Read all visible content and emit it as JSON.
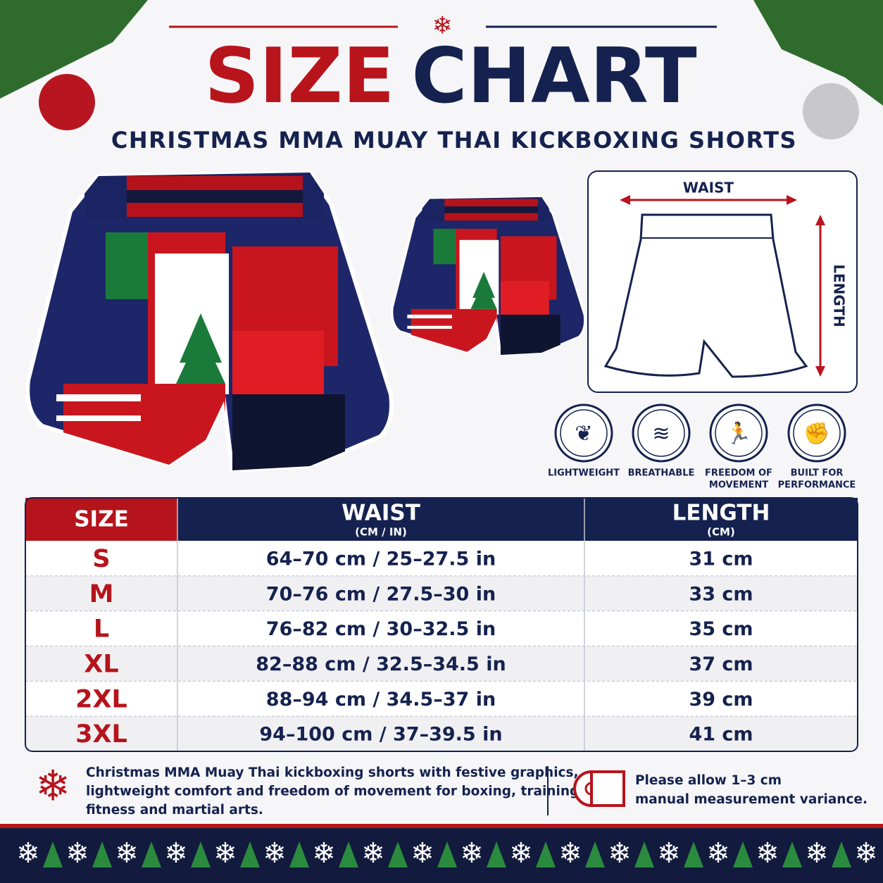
{
  "header": {
    "title_part1": "SIZE",
    "title_part2": "CHART",
    "subtitle": "CHRISTMAS MMA MUAY THAI KICKBOXING SHORTS"
  },
  "diagram": {
    "waist_label": "WAIST",
    "length_label": "LENGTH"
  },
  "features": [
    {
      "lines": [
        "LIGHTWEIGHT"
      ]
    },
    {
      "lines": [
        "BREATHABLE"
      ]
    },
    {
      "lines": [
        "FREEDOM OF",
        "MOVEMENT"
      ]
    },
    {
      "lines": [
        "BUILT FOR",
        "PERFORMANCE"
      ]
    }
  ],
  "table": {
    "columns": [
      {
        "title": "SIZE"
      },
      {
        "title": "WAIST",
        "unit": "(CM / IN)"
      },
      {
        "title": "LENGTH",
        "unit": "(CM)"
      }
    ],
    "rows": [
      [
        "S",
        "64–70 cm / 25–27.5 in",
        "31 cm"
      ],
      [
        "M",
        "70–76 cm / 27.5–30 in",
        "33 cm"
      ],
      [
        "L",
        "76–82 cm / 30–32.5 in",
        "35 cm"
      ],
      [
        "XL",
        "82–88 cm / 32.5–34.5 in",
        "37 cm"
      ],
      [
        "2XL",
        "88–94 cm / 34.5–37 in",
        "39 cm"
      ],
      [
        "3XL",
        "94–100 cm / 37–39.5 in",
        "41 cm"
      ]
    ]
  },
  "footer": {
    "description": [
      "Christmas MMA Muay Thai kickboxing shorts with festive graphics,",
      "lightweight comfort and freedom of movement for boxing, training,",
      "fitness and martial arts."
    ],
    "note": [
      "Please allow 1–3 cm",
      "manual measurement variance."
    ]
  }
}
